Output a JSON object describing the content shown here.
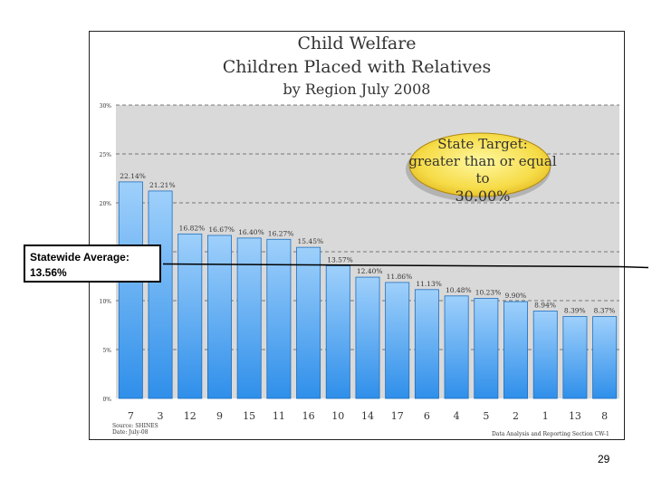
{
  "slide": {
    "page_number": "29"
  },
  "chart_data": {
    "type": "bar",
    "title": "Child Welfare",
    "subtitle": "Children Placed with Relatives",
    "subtitle2": "by Region July 2008",
    "categories": [
      "7",
      "3",
      "12",
      "9",
      "15",
      "11",
      "16",
      "10",
      "14",
      "17",
      "6",
      "4",
      "5",
      "2",
      "1",
      "13",
      "8"
    ],
    "values": [
      22.14,
      21.21,
      16.82,
      16.67,
      16.4,
      16.27,
      15.45,
      13.57,
      12.4,
      11.86,
      11.13,
      10.48,
      10.23,
      9.9,
      8.94,
      8.39,
      8.37
    ],
    "value_labels": [
      "22.14%",
      "21.21%",
      "16.82%",
      "16.67%",
      "16.40%",
      "16.27%",
      "15.45%",
      "13.57%",
      "12.40%",
      "11.86%",
      "11.13%",
      "10.48%",
      "10.23%",
      "9.90%",
      "8.94%",
      "8.39%",
      "8.37%"
    ],
    "y_ticks": [
      0,
      5,
      10,
      15,
      20,
      25,
      30
    ],
    "y_tick_labels": [
      "0%",
      "5%",
      "10%",
      "15%",
      "20%",
      "25%",
      "30%"
    ],
    "ylim": [
      0,
      30
    ],
    "grid": true,
    "xlabel": "",
    "ylabel": "",
    "bar_color": "#4aa3ee",
    "plot_background": "#d9d9d9",
    "statewide_average": {
      "value": 13.56,
      "label_line1": "Statewide Average:",
      "label_line2": "13.56%"
    },
    "target": {
      "line1": "State Target:",
      "line2": "greater than or equal to",
      "line3": "30.00%"
    },
    "source_line1": "Source: SHINES",
    "source_line2": "Date: July-08",
    "footer_right": "Data Analysis and Reporting Section   CW-1"
  }
}
